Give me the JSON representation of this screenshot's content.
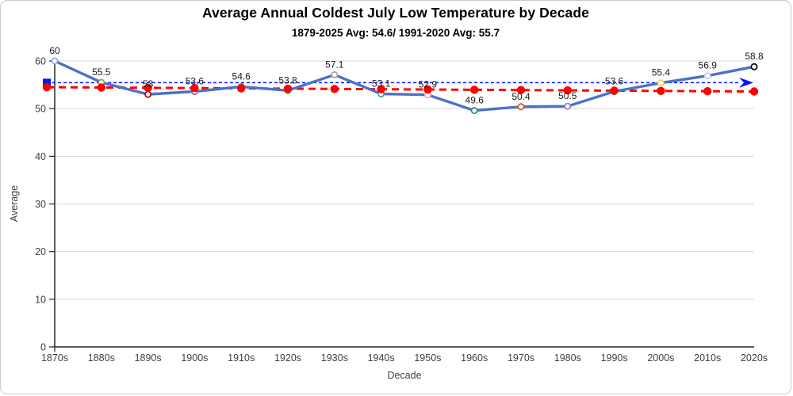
{
  "chart_data": {
    "type": "line",
    "title": "Average Annual Coldest July Low Temperature by Decade",
    "subtitle": "1879-2025 Avg: 54.6/ 1991-2020 Avg: 55.7",
    "xlabel": "Decade",
    "ylabel": "Average",
    "ylim": [
      0,
      60
    ],
    "yticks": [
      0,
      10,
      20,
      30,
      40,
      50,
      60
    ],
    "grid": "horizontal",
    "legend": "none",
    "categories": [
      "1870s",
      "1880s",
      "1890s",
      "1900s",
      "1910s",
      "1920s",
      "1930s",
      "1940s",
      "1950s",
      "1960s",
      "1970s",
      "1980s",
      "1990s",
      "2000s",
      "2010s",
      "2020s"
    ],
    "series": [
      {
        "name": "average-coldest-july-low",
        "color": "#4a72c8",
        "values": [
          60,
          55.5,
          53,
          53.6,
          54.6,
          53.8,
          57.1,
          53.1,
          52.9,
          49.6,
          50.4,
          50.5,
          53.6,
          55.4,
          56.9,
          58.8
        ],
        "data_labels": [
          "60",
          "55.5",
          "53",
          "53.6",
          "54.6",
          "53.8",
          "57.1",
          "53.1",
          "52.9",
          "49.6",
          "50.4",
          "50.5",
          "53.6",
          "55.4",
          "56.9",
          "58.8"
        ],
        "marker_fill": "#ffffff",
        "marker_edge_colors": [
          "#8faadc",
          "#70ad47",
          "#c00000",
          "#a64ea6",
          "#4a72c8",
          "#2e9e8e",
          "#a6a6a6",
          "#3d9e9e",
          "#f2a2c0",
          "#2e8b74",
          "#c55a11",
          "#8f7fd4",
          "#4a72c8",
          "#ffd34d",
          "#c9c9e8",
          "#000000"
        ]
      }
    ],
    "reference_lines": [
      {
        "id": "avg-1991-2020",
        "name": "1991-2020 Avg",
        "value": 55.7,
        "color": "#0016ff",
        "style": "dashed",
        "end_arrow": true,
        "start_marker": "square"
      },
      {
        "id": "avg-1879-2025",
        "name": "1879-2025 Avg",
        "value": 54.6,
        "color": "#ff0000",
        "style": "dashed",
        "draw_start_value": 54.5,
        "draw_end_value": 53.6,
        "point_markers": true,
        "start_marker": "circle"
      }
    ],
    "axis_colors": {
      "line": "#262626",
      "grid": "#d9d9d9",
      "tick_text": "#404040",
      "data_label_text": "#1a1a1a"
    }
  }
}
